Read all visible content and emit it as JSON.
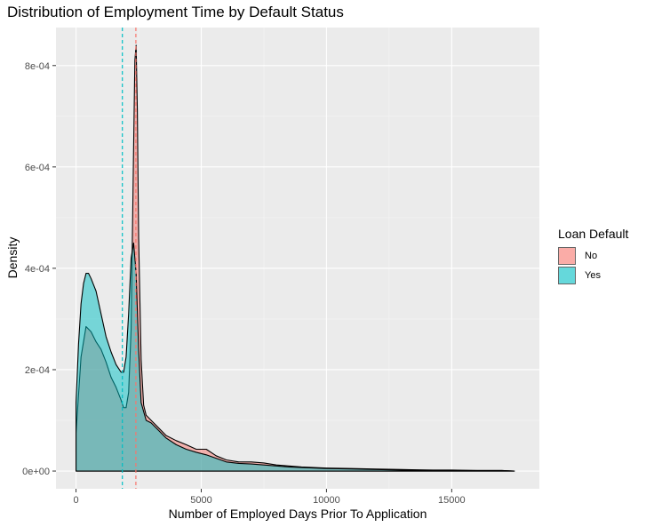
{
  "chart_data": {
    "type": "area",
    "title": "Distribution of Employment Time by Default Status",
    "xlabel": "Number of Employed Days Prior To Application",
    "ylabel": "Density",
    "xlim": [
      -800,
      18500
    ],
    "ylim": [
      -3.5e-05,
      0.000875
    ],
    "x_ticks": [
      0,
      5000,
      10000,
      15000
    ],
    "x_tick_labels": [
      "0",
      "5000",
      "10000",
      "15000"
    ],
    "y_ticks": [
      0,
      0.0002,
      0.0004,
      0.0006,
      0.0008
    ],
    "y_tick_labels": [
      "0e+00",
      "2e-04",
      "4e-04",
      "6e-04",
      "8e-04"
    ],
    "grid": true,
    "legend": {
      "title": "Loan Default",
      "position": "right"
    },
    "series": [
      {
        "name": "No",
        "color": "#F8766D",
        "mean_line": 2390,
        "x": [
          0,
          200,
          400,
          600,
          800,
          1000,
          1200,
          1400,
          1600,
          1800,
          1900,
          2000,
          2100,
          2200,
          2300,
          2350,
          2400,
          2450,
          2500,
          2600,
          2700,
          2800,
          3000,
          3300,
          3600,
          4000,
          4400,
          4800,
          5200,
          5600,
          6000,
          6500,
          7000,
          7500,
          8000,
          8500,
          9000,
          10000,
          11000,
          12000,
          13000,
          14000,
          15000,
          16000,
          17000,
          17500
        ],
        "y": [
          7.5e-05,
          0.000225,
          0.000285,
          0.000275,
          0.000255,
          0.00024,
          0.000215,
          0.000185,
          0.000165,
          0.00014,
          0.000125,
          0.000125,
          0.000155,
          0.00028,
          0.00064,
          0.00081,
          0.00084,
          0.00071,
          0.00046,
          0.00022,
          0.00013,
          0.00011,
          0.0001,
          8.5e-05,
          7e-05,
          6e-05,
          5.2e-05,
          4.3e-05,
          4.3e-05,
          3e-05,
          2.2e-05,
          1.8e-05,
          1.8e-05,
          1.6e-05,
          1.2e-05,
          1e-05,
          8e-06,
          6e-06,
          5e-06,
          4e-06,
          3e-06,
          2e-06,
          2e-06,
          1e-06,
          1e-06,
          0.0
        ]
      },
      {
        "name": "Yes",
        "color": "#00BFC4",
        "mean_line": 1850,
        "x": [
          0,
          100,
          200,
          300,
          400,
          500,
          600,
          800,
          1000,
          1200,
          1400,
          1600,
          1800,
          1900,
          2000,
          2100,
          2200,
          2300,
          2400,
          2500,
          2600,
          2800,
          3000,
          3300,
          3600,
          4000,
          4400,
          4800,
          5200,
          5600,
          6000,
          6500,
          7000,
          7500,
          8000,
          8500,
          9000,
          10000,
          11000,
          12000,
          13000,
          14000,
          15000,
          16000,
          17000,
          17500
        ],
        "y": [
          0.000135,
          0.00025,
          0.00033,
          0.00037,
          0.00039,
          0.00039,
          0.00038,
          0.000355,
          0.00031,
          0.000265,
          0.000235,
          0.00021,
          0.000195,
          0.000195,
          0.000225,
          0.00031,
          0.00042,
          0.00045,
          0.00039,
          0.00024,
          0.000135,
          0.0001,
          9.5e-05,
          8e-05,
          6.5e-05,
          5.2e-05,
          4.3e-05,
          3.7e-05,
          3.2e-05,
          2.5e-05,
          1.8e-05,
          1.5e-05,
          1.4e-05,
          1.2e-05,
          1e-05,
          8e-06,
          7e-06,
          5e-06,
          4e-06,
          3e-06,
          2e-06,
          2e-06,
          1e-06,
          1e-06,
          1e-06,
          0.0
        ]
      }
    ]
  }
}
